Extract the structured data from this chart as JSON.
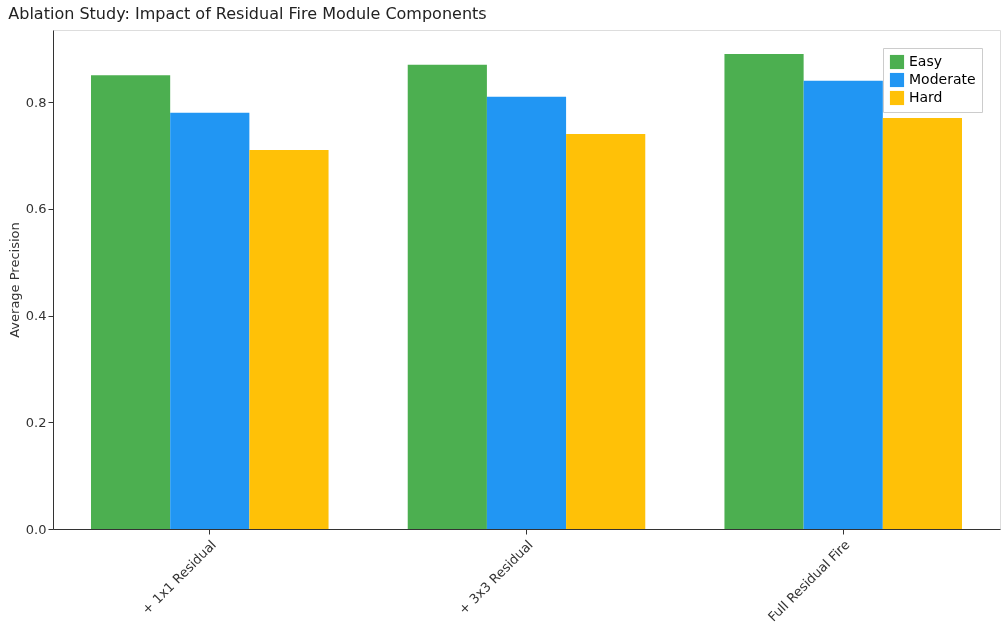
{
  "chart_data": {
    "type": "bar",
    "title": "Ablation Study: Impact of Residual Fire Module Components",
    "ylabel": "Average Precision",
    "categories": [
      "+ 1x1 Residual",
      "+ 3x3 Residual",
      "Full Residual Fire"
    ],
    "series": [
      {
        "name": "Easy",
        "color": "#4caf50",
        "values": [
          0.85,
          0.87,
          0.89
        ]
      },
      {
        "name": "Moderate",
        "color": "#2196f3",
        "values": [
          0.78,
          0.81,
          0.84
        ]
      },
      {
        "name": "Hard",
        "color": "#ffc107",
        "values": [
          0.71,
          0.74,
          0.77
        ]
      }
    ],
    "ylim": [
      0,
      0.935
    ],
    "yticks": [
      {
        "value": 0,
        "label": "0.0"
      },
      {
        "value": 0.2,
        "label": "0.2"
      },
      {
        "value": 0.4,
        "label": "0.4"
      },
      {
        "value": 0.6,
        "label": "0.6"
      },
      {
        "value": 0.8,
        "label": "0.8"
      }
    ],
    "legend": "top right",
    "grid": false
  }
}
